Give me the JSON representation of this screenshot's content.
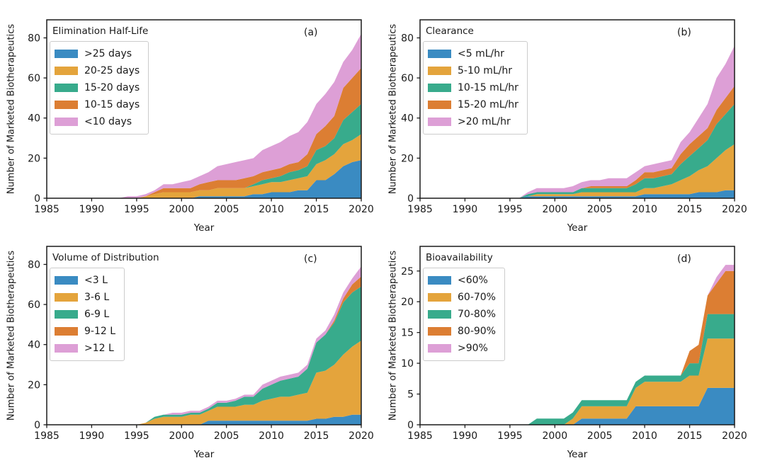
{
  "figure": {
    "ylabel": "Number of Marketed Biotherapeutics",
    "xlabel": "Year"
  },
  "years": [
    1985,
    1986,
    1987,
    1988,
    1989,
    1990,
    1991,
    1992,
    1993,
    1994,
    1995,
    1996,
    1997,
    1998,
    1999,
    2000,
    2001,
    2002,
    2003,
    2004,
    2005,
    2006,
    2007,
    2008,
    2009,
    2010,
    2011,
    2012,
    2013,
    2014,
    2015,
    2016,
    2017,
    2018,
    2019,
    2020
  ],
  "xticks": [
    1985,
    1990,
    1995,
    2000,
    2005,
    2010,
    2015,
    2020
  ],
  "palette": {
    "blue": "#3a8bc2",
    "gold": "#e4a43c",
    "green": "#38ab8c",
    "orange": "#dc7e33",
    "pink": "#dd9fd6"
  },
  "chart_data": [
    {
      "type": "area",
      "stacked": true,
      "label": "(a)",
      "legend_title": "Elimination Half-Life",
      "legend_position": "upper left",
      "xlabel": "Year",
      "ylabel": "Number of Marketed Biotherapeutics",
      "xlim": [
        1985,
        2020
      ],
      "ylim": [
        0,
        89
      ],
      "yticks": [
        0,
        20,
        40,
        60,
        80
      ],
      "grid": false,
      "series": [
        {
          "name": ">25 days",
          "color": "#3a8bc2",
          "values": [
            0,
            0,
            0,
            0,
            0,
            0,
            0,
            0,
            0,
            0,
            0,
            0,
            0,
            0,
            0,
            0,
            0,
            1,
            1,
            1,
            1,
            1,
            1,
            2,
            2,
            3,
            3,
            3,
            4,
            4,
            9,
            9,
            12,
            16,
            18,
            19
          ]
        },
        {
          "name": "20-25 days",
          "color": "#e4a43c",
          "values": [
            0,
            0,
            0,
            0,
            0,
            0,
            0,
            0,
            0,
            0,
            0,
            1,
            2,
            3,
            3,
            3,
            3,
            3,
            3,
            4,
            4,
            4,
            4,
            4,
            5,
            5,
            5,
            6,
            6,
            7,
            8,
            10,
            10,
            11,
            11,
            13
          ]
        },
        {
          "name": "15-20 days",
          "color": "#38ab8c",
          "values": [
            0,
            0,
            0,
            0,
            0,
            0,
            0,
            0,
            0,
            0,
            0,
            0,
            0,
            0,
            0,
            0,
            0,
            0,
            0,
            0,
            0,
            0,
            0,
            1,
            2,
            2,
            3,
            4,
            4,
            5,
            7,
            7,
            8,
            12,
            14,
            15
          ]
        },
        {
          "name": "10-15 days",
          "color": "#dc7e33",
          "values": [
            0,
            0,
            0,
            0,
            0,
            0,
            0,
            0,
            0,
            0,
            0,
            0,
            1,
            2,
            2,
            2,
            2,
            3,
            4,
            4,
            4,
            4,
            5,
            4,
            4,
            4,
            4,
            4,
            4,
            6,
            8,
            10,
            11,
            16,
            17,
            18
          ]
        },
        {
          "name": "<10 days",
          "color": "#dd9fd6",
          "values": [
            0,
            0,
            0,
            0,
            0,
            0,
            0,
            0,
            0,
            1,
            1,
            1,
            1,
            2,
            2,
            3,
            4,
            4,
            5,
            7,
            8,
            9,
            9,
            9,
            11,
            12,
            13,
            14,
            15,
            16,
            15,
            16,
            17,
            13,
            14,
            17
          ]
        }
      ]
    },
    {
      "type": "area",
      "stacked": true,
      "label": "(b)",
      "legend_title": "Clearance",
      "legend_position": "upper left",
      "xlabel": "Year",
      "ylabel": "Number of Marketed Biotherapeutics",
      "xlim": [
        1985,
        2020
      ],
      "ylim": [
        0,
        89
      ],
      "yticks": [
        0,
        20,
        40,
        60,
        80
      ],
      "grid": false,
      "series": [
        {
          "name": "<5 mL/hr",
          "color": "#3a8bc2",
          "values": [
            0,
            0,
            0,
            0,
            0,
            0,
            0,
            0,
            0,
            0,
            0,
            0,
            1,
            1,
            1,
            1,
            1,
            1,
            1,
            1,
            1,
            1,
            1,
            1,
            1,
            2,
            2,
            2,
            2,
            2,
            2,
            3,
            3,
            3,
            4,
            4
          ]
        },
        {
          "name": "5-10 mL/hr",
          "color": "#e4a43c",
          "values": [
            0,
            0,
            0,
            0,
            0,
            0,
            0,
            0,
            0,
            0,
            0,
            0,
            0,
            1,
            1,
            1,
            1,
            1,
            2,
            2,
            2,
            2,
            2,
            2,
            2,
            3,
            3,
            4,
            5,
            7,
            9,
            11,
            13,
            17,
            20,
            23
          ]
        },
        {
          "name": "10-15 mL/hr",
          "color": "#38ab8c",
          "values": [
            0,
            0,
            0,
            0,
            0,
            0,
            0,
            0,
            0,
            0,
            0,
            0,
            1,
            1,
            1,
            1,
            1,
            1,
            2,
            2,
            2,
            2,
            2,
            2,
            4,
            5,
            5,
            5,
            5,
            8,
            10,
            11,
            13,
            17,
            18,
            20
          ]
        },
        {
          "name": "15-20 mL/hr",
          "color": "#dc7e33",
          "values": [
            0,
            0,
            0,
            0,
            0,
            0,
            0,
            0,
            0,
            0,
            0,
            0,
            0,
            0,
            0,
            0,
            0,
            0,
            0,
            1,
            1,
            1,
            1,
            1,
            2,
            3,
            3,
            3,
            3,
            5,
            6,
            6,
            6,
            7,
            8,
            9
          ]
        },
        {
          "name": ">20 mL/hr",
          "color": "#dd9fd6",
          "values": [
            0,
            0,
            0,
            0,
            0,
            0,
            0,
            0,
            0,
            0,
            0,
            0,
            1,
            2,
            2,
            2,
            2,
            3,
            3,
            3,
            3,
            4,
            4,
            4,
            4,
            3,
            4,
            4,
            4,
            6,
            6,
            9,
            12,
            16,
            17,
            20
          ]
        }
      ]
    },
    {
      "type": "area",
      "stacked": true,
      "label": "(c)",
      "legend_title": "Volume of Distribution",
      "legend_position": "upper left",
      "xlabel": "Year",
      "ylabel": "Number of Marketed Biotherapeutics",
      "xlim": [
        1985,
        2020
      ],
      "ylim": [
        0,
        89
      ],
      "yticks": [
        0,
        20,
        40,
        60,
        80
      ],
      "grid": false,
      "series": [
        {
          "name": "<3 L",
          "color": "#3a8bc2",
          "values": [
            0,
            0,
            0,
            0,
            0,
            0,
            0,
            0,
            0,
            0,
            0,
            0,
            0,
            0,
            0,
            0,
            0,
            0,
            2,
            2,
            2,
            2,
            2,
            2,
            2,
            2,
            2,
            2,
            2,
            2,
            3,
            3,
            4,
            4,
            5,
            5
          ]
        },
        {
          "name": "3-6 L",
          "color": "#e4a43c",
          "values": [
            0,
            0,
            0,
            0,
            0,
            0,
            0,
            0,
            0,
            0,
            0,
            1,
            3,
            4,
            4,
            4,
            5,
            5,
            5,
            7,
            7,
            7,
            8,
            8,
            10,
            11,
            12,
            12,
            13,
            14,
            23,
            24,
            26,
            31,
            34,
            37
          ]
        },
        {
          "name": "6-9 L",
          "color": "#38ab8c",
          "values": [
            0,
            0,
            0,
            0,
            0,
            0,
            0,
            0,
            0,
            0,
            0,
            0,
            1,
            1,
            1,
            1,
            1,
            1,
            1,
            2,
            2,
            3,
            4,
            4,
            6,
            7,
            8,
            9,
            9,
            12,
            15,
            18,
            21,
            26,
            27,
            27
          ]
        },
        {
          "name": "9-12 L",
          "color": "#dc7e33",
          "values": [
            0,
            0,
            0,
            0,
            0,
            0,
            0,
            0,
            0,
            0,
            0,
            0,
            0,
            0,
            0,
            0,
            0,
            0,
            0,
            0,
            0,
            0,
            0,
            0,
            0,
            0,
            0,
            0,
            0,
            0,
            0,
            0,
            1,
            2,
            4,
            5
          ]
        },
        {
          "name": ">12 L",
          "color": "#dd9fd6",
          "values": [
            0,
            0,
            0,
            0,
            0,
            0,
            0,
            0,
            0,
            0,
            0,
            0,
            0,
            0,
            1,
            1,
            1,
            1,
            1,
            1,
            1,
            1,
            1,
            1,
            2,
            2,
            2,
            2,
            2,
            2,
            2,
            2,
            3,
            3,
            3,
            5
          ]
        }
      ]
    },
    {
      "type": "area",
      "stacked": true,
      "label": "(d)",
      "legend_title": "Bioavailability",
      "legend_position": "upper left",
      "xlabel": "Year",
      "ylabel": "Number of Marketed Biotherapeutics",
      "xlim": [
        1985,
        2020
      ],
      "ylim": [
        0,
        29
      ],
      "yticks": [
        0,
        5,
        10,
        15,
        20,
        25
      ],
      "grid": false,
      "series": [
        {
          "name": "<60%",
          "color": "#3a8bc2",
          "values": [
            0,
            0,
            0,
            0,
            0,
            0,
            0,
            0,
            0,
            0,
            0,
            0,
            0,
            0,
            0,
            0,
            0,
            0,
            1,
            1,
            1,
            1,
            1,
            1,
            3,
            3,
            3,
            3,
            3,
            3,
            3,
            3,
            6,
            6,
            6,
            6
          ]
        },
        {
          "name": "60-70%",
          "color": "#e4a43c",
          "values": [
            0,
            0,
            0,
            0,
            0,
            0,
            0,
            0,
            0,
            0,
            0,
            0,
            0,
            0,
            0,
            0,
            0,
            1,
            2,
            2,
            2,
            2,
            2,
            2,
            3,
            4,
            4,
            4,
            4,
            4,
            5,
            5,
            8,
            8,
            8,
            8
          ]
        },
        {
          "name": "70-80%",
          "color": "#38ab8c",
          "values": [
            0,
            0,
            0,
            0,
            0,
            0,
            0,
            0,
            0,
            0,
            0,
            0,
            0,
            1,
            1,
            1,
            1,
            1,
            1,
            1,
            1,
            1,
            1,
            1,
            1,
            1,
            1,
            1,
            1,
            1,
            2,
            2,
            4,
            4,
            4,
            4
          ]
        },
        {
          "name": "80-90%",
          "color": "#dc7e33",
          "values": [
            0,
            0,
            0,
            0,
            0,
            0,
            0,
            0,
            0,
            0,
            0,
            0,
            0,
            0,
            0,
            0,
            0,
            0,
            0,
            0,
            0,
            0,
            0,
            0,
            0,
            0,
            0,
            0,
            0,
            0,
            2,
            3,
            3,
            5,
            7,
            7
          ]
        },
        {
          "name": ">90%",
          "color": "#dd9fd6",
          "values": [
            0,
            0,
            0,
            0,
            0,
            0,
            0,
            0,
            0,
            0,
            0,
            0,
            0,
            0,
            0,
            0,
            0,
            0,
            0,
            0,
            0,
            0,
            0,
            0,
            0,
            0,
            0,
            0,
            0,
            0,
            0,
            0,
            0,
            1,
            1,
            1
          ]
        }
      ]
    }
  ]
}
